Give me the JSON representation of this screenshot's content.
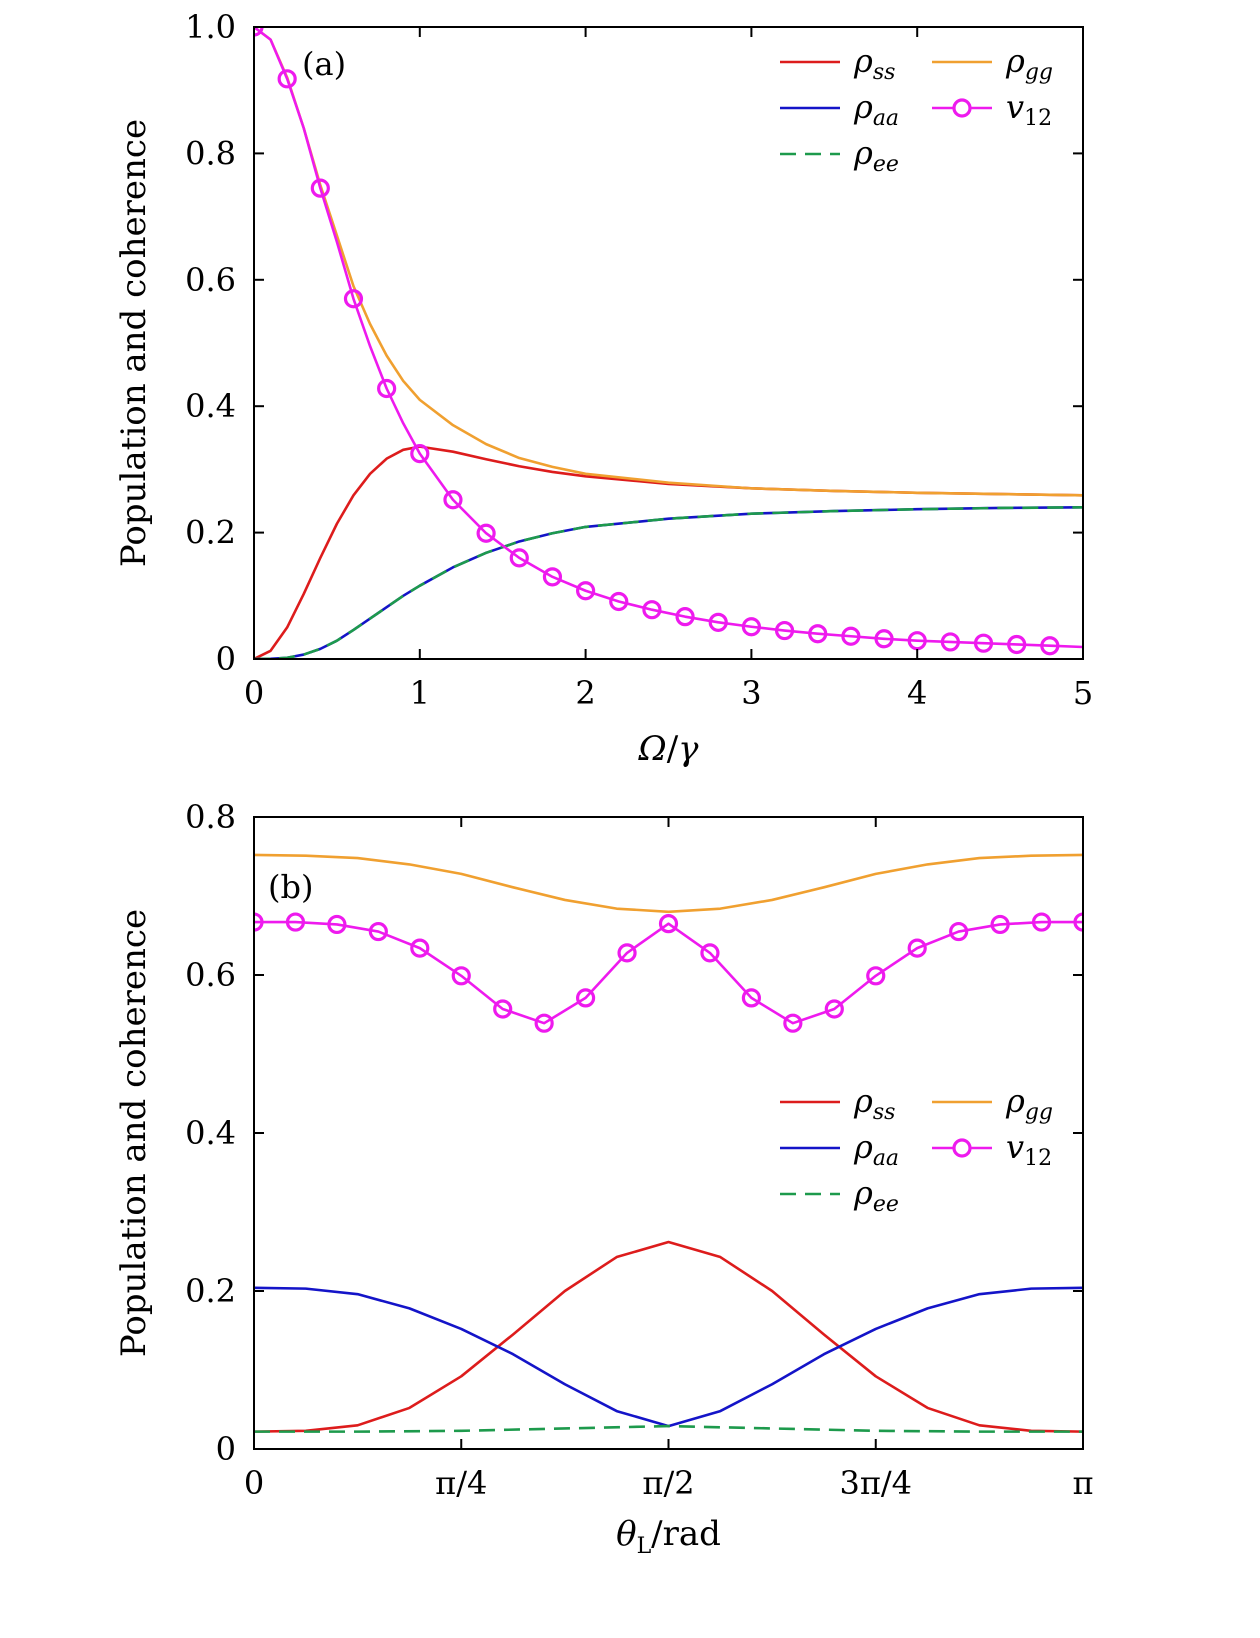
{
  "chart_data": [
    {
      "id": "a",
      "type": "line",
      "panel_label": "(a)",
      "xlabel_parts": [
        "Ω",
        "/",
        "γ"
      ],
      "ylabel": "Population and coherence",
      "xlim": [
        0,
        5
      ],
      "ylim": [
        0,
        1.0
      ],
      "xticks": [
        0,
        1,
        2,
        3,
        4,
        5
      ],
      "xtick_labels": [
        "0",
        "1",
        "2",
        "3",
        "4",
        "5"
      ],
      "yticks": [
        0,
        0.2,
        0.4,
        0.6,
        0.8,
        1.0
      ],
      "ytick_labels": [
        "0",
        "0.2",
        "0.4",
        "0.6",
        "0.8",
        "1.0"
      ],
      "legend": {
        "position": "top-right",
        "entries": [
          {
            "key": "rho_ss",
            "sym": "ρ",
            "sub": "ss"
          },
          {
            "key": "rho_gg",
            "sym": "ρ",
            "sub": "gg"
          },
          {
            "key": "rho_aa",
            "sym": "ρ",
            "sub": "aa"
          },
          {
            "key": "v12",
            "sym": "v",
            "sub": "12"
          },
          {
            "key": "rho_ee",
            "sym": "ρ",
            "sub": "ee"
          }
        ]
      },
      "series": [
        {
          "key": "rho_ss",
          "name": "ρss",
          "color": "#dd1c1c",
          "style": "solid",
          "x": [
            0,
            0.1,
            0.2,
            0.3,
            0.4,
            0.5,
            0.6,
            0.7,
            0.8,
            0.9,
            1.0,
            1.2,
            1.4,
            1.6,
            1.8,
            2.0,
            2.5,
            3.0,
            3.5,
            4.0,
            4.5,
            5.0
          ],
          "y": [
            0,
            0.013,
            0.05,
            0.103,
            0.16,
            0.214,
            0.259,
            0.293,
            0.317,
            0.331,
            0.336,
            0.328,
            0.316,
            0.305,
            0.296,
            0.289,
            0.277,
            0.27,
            0.266,
            0.263,
            0.261,
            0.259
          ]
        },
        {
          "key": "rho_aa",
          "name": "ρaa",
          "color": "#1414c8",
          "style": "solid",
          "x": [
            0,
            0.1,
            0.2,
            0.3,
            0.4,
            0.5,
            0.6,
            0.7,
            0.8,
            0.9,
            1.0,
            1.2,
            1.4,
            1.6,
            1.8,
            2.0,
            2.5,
            3.0,
            3.5,
            4.0,
            4.5,
            5.0
          ],
          "y": [
            0,
            0.0003,
            0.002,
            0.007,
            0.016,
            0.029,
            0.046,
            0.064,
            0.082,
            0.1,
            0.116,
            0.145,
            0.168,
            0.186,
            0.199,
            0.209,
            0.222,
            0.23,
            0.234,
            0.237,
            0.239,
            0.24
          ]
        },
        {
          "key": "rho_ee",
          "name": "ρee",
          "color": "#1d9a4c",
          "style": "dashed",
          "x": [
            0,
            0.1,
            0.2,
            0.3,
            0.4,
            0.5,
            0.6,
            0.7,
            0.8,
            0.9,
            1.0,
            1.2,
            1.4,
            1.6,
            1.8,
            2.0,
            2.5,
            3.0,
            3.5,
            4.0,
            4.5,
            5.0
          ],
          "y": [
            0,
            0.0003,
            0.002,
            0.007,
            0.016,
            0.029,
            0.046,
            0.064,
            0.082,
            0.1,
            0.116,
            0.145,
            0.168,
            0.186,
            0.199,
            0.209,
            0.222,
            0.23,
            0.234,
            0.237,
            0.239,
            0.24
          ]
        },
        {
          "key": "rho_gg",
          "name": "ρgg",
          "color": "#f0a030",
          "style": "solid",
          "x": [
            0,
            0.1,
            0.2,
            0.3,
            0.4,
            0.5,
            0.6,
            0.7,
            0.8,
            0.9,
            1.0,
            1.2,
            1.4,
            1.6,
            1.8,
            2.0,
            2.5,
            3.0,
            3.5,
            4.0,
            4.5,
            5.0
          ],
          "y": [
            1.0,
            0.98,
            0.92,
            0.84,
            0.75,
            0.67,
            0.59,
            0.53,
            0.48,
            0.44,
            0.41,
            0.37,
            0.34,
            0.318,
            0.304,
            0.293,
            0.279,
            0.27,
            0.266,
            0.263,
            0.261,
            0.259
          ]
        },
        {
          "key": "v12",
          "name": "v12",
          "color": "#ee1aee",
          "style": "solid",
          "marker": "circle",
          "x": [
            0,
            0.1,
            0.2,
            0.3,
            0.4,
            0.5,
            0.6,
            0.7,
            0.8,
            0.9,
            1.0,
            1.2,
            1.4,
            1.6,
            1.8,
            2.0,
            2.2,
            2.4,
            2.6,
            2.8,
            3.0,
            3.2,
            3.4,
            3.6,
            3.8,
            4.0,
            4.2,
            4.4,
            4.6,
            4.8,
            5.0
          ],
          "y": [
            1.0,
            0.98,
            0.918,
            0.84,
            0.745,
            0.66,
            0.57,
            0.495,
            0.428,
            0.373,
            0.325,
            0.252,
            0.199,
            0.16,
            0.13,
            0.108,
            0.091,
            0.078,
            0.067,
            0.058,
            0.051,
            0.045,
            0.04,
            0.036,
            0.032,
            0.029,
            0.027,
            0.025,
            0.023,
            0.021,
            0.019
          ]
        },
        {
          "key": "v12_markers",
          "name": "v12 markers",
          "color": "#ee1aee",
          "x": [
            0,
            0.2,
            0.4,
            0.6,
            0.8,
            1.0,
            1.2,
            1.4,
            1.6,
            1.8,
            2.0,
            2.2,
            2.4,
            2.6,
            2.8,
            3.0,
            3.2,
            3.4,
            3.6,
            3.8,
            4.0,
            4.2,
            4.4,
            4.6,
            4.8
          ],
          "y": [
            1.0,
            0.918,
            0.745,
            0.57,
            0.428,
            0.325,
            0.252,
            0.199,
            0.16,
            0.13,
            0.108,
            0.091,
            0.078,
            0.067,
            0.058,
            0.051,
            0.045,
            0.04,
            0.036,
            0.032,
            0.029,
            0.027,
            0.025,
            0.023,
            0.021
          ]
        }
      ]
    },
    {
      "id": "b",
      "type": "line",
      "panel_label": "(b)",
      "xlabel_parts": [
        "θ",
        "L",
        "/rad"
      ],
      "ylabel": "Population and coherence",
      "xlim": [
        0,
        4
      ],
      "x_units_note": "x in units of π/4",
      "ylim": [
        0,
        0.8
      ],
      "xticks": [
        0,
        1,
        2,
        3,
        4
      ],
      "xtick_labels": [
        "0",
        "π/4",
        "π/2",
        "3π/4",
        "π"
      ],
      "yticks": [
        0,
        0.2,
        0.4,
        0.6,
        0.8
      ],
      "ytick_labels": [
        "0",
        "0.2",
        "0.4",
        "0.6",
        "0.8"
      ],
      "legend": {
        "position": "center-right",
        "entries": [
          {
            "key": "rho_ss",
            "sym": "ρ",
            "sub": "ss"
          },
          {
            "key": "rho_gg",
            "sym": "ρ",
            "sub": "gg"
          },
          {
            "key": "rho_aa",
            "sym": "ρ",
            "sub": "aa"
          },
          {
            "key": "v12",
            "sym": "v",
            "sub": "12"
          },
          {
            "key": "rho_ee",
            "sym": "ρ",
            "sub": "ee"
          }
        ]
      },
      "series": [
        {
          "key": "rho_ss",
          "name": "ρss",
          "color": "#dd1c1c",
          "style": "solid",
          "x": [
            0,
            0.25,
            0.5,
            0.75,
            1.0,
            1.25,
            1.5,
            1.75,
            2.0,
            2.25,
            2.5,
            2.75,
            3.0,
            3.25,
            3.5,
            3.75,
            4.0
          ],
          "y": [
            0.022,
            0.023,
            0.03,
            0.052,
            0.092,
            0.145,
            0.2,
            0.243,
            0.262,
            0.243,
            0.2,
            0.145,
            0.092,
            0.052,
            0.03,
            0.023,
            0.022
          ]
        },
        {
          "key": "rho_aa",
          "name": "ρaa",
          "color": "#1414c8",
          "style": "solid",
          "x": [
            0,
            0.25,
            0.5,
            0.75,
            1.0,
            1.25,
            1.5,
            1.75,
            2.0,
            2.25,
            2.5,
            2.75,
            3.0,
            3.25,
            3.5,
            3.75,
            4.0
          ],
          "y": [
            0.204,
            0.203,
            0.196,
            0.178,
            0.152,
            0.12,
            0.082,
            0.048,
            0.029,
            0.048,
            0.082,
            0.12,
            0.152,
            0.178,
            0.196,
            0.203,
            0.204
          ]
        },
        {
          "key": "rho_ee",
          "name": "ρee",
          "color": "#1d9a4c",
          "style": "dashed",
          "x": [
            0,
            0.5,
            1.0,
            1.5,
            2.0,
            2.5,
            3.0,
            3.5,
            4.0
          ],
          "y": [
            0.022,
            0.022,
            0.023,
            0.026,
            0.029,
            0.026,
            0.023,
            0.022,
            0.022
          ]
        },
        {
          "key": "rho_gg",
          "name": "ρgg",
          "color": "#f0a030",
          "style": "solid",
          "x": [
            0,
            0.25,
            0.5,
            0.75,
            1.0,
            1.25,
            1.5,
            1.75,
            2.0,
            2.25,
            2.5,
            2.75,
            3.0,
            3.25,
            3.5,
            3.75,
            4.0
          ],
          "y": [
            0.752,
            0.751,
            0.748,
            0.74,
            0.728,
            0.711,
            0.695,
            0.684,
            0.68,
            0.684,
            0.695,
            0.711,
            0.728,
            0.74,
            0.748,
            0.751,
            0.752
          ]
        },
        {
          "key": "v12",
          "name": "v12",
          "color": "#ee1aee",
          "style": "solid",
          "marker": "circle",
          "x": [
            0,
            0.2,
            0.4,
            0.6,
            0.8,
            1.0,
            1.2,
            1.4,
            1.6,
            1.8,
            2.0,
            2.2,
            2.4,
            2.6,
            2.8,
            3.0,
            3.2,
            3.4,
            3.6,
            3.8,
            4.0
          ],
          "y": [
            0.667,
            0.667,
            0.664,
            0.655,
            0.634,
            0.599,
            0.557,
            0.539,
            0.571,
            0.628,
            0.665,
            0.628,
            0.571,
            0.539,
            0.557,
            0.599,
            0.634,
            0.655,
            0.664,
            0.667,
            0.667
          ]
        },
        {
          "key": "v12_markers",
          "name": "v12 markers",
          "color": "#ee1aee",
          "x": [
            0,
            0.2,
            0.4,
            0.6,
            0.8,
            1.0,
            1.2,
            1.4,
            1.6,
            1.8,
            2.0,
            2.2,
            2.4,
            2.6,
            2.8,
            3.0,
            3.2,
            3.4,
            3.6,
            3.8,
            4.0
          ],
          "y": [
            0.667,
            0.667,
            0.664,
            0.655,
            0.634,
            0.599,
            0.557,
            0.539,
            0.571,
            0.628,
            0.665,
            0.628,
            0.571,
            0.539,
            0.557,
            0.599,
            0.634,
            0.655,
            0.664,
            0.667,
            0.667
          ]
        }
      ]
    }
  ]
}
